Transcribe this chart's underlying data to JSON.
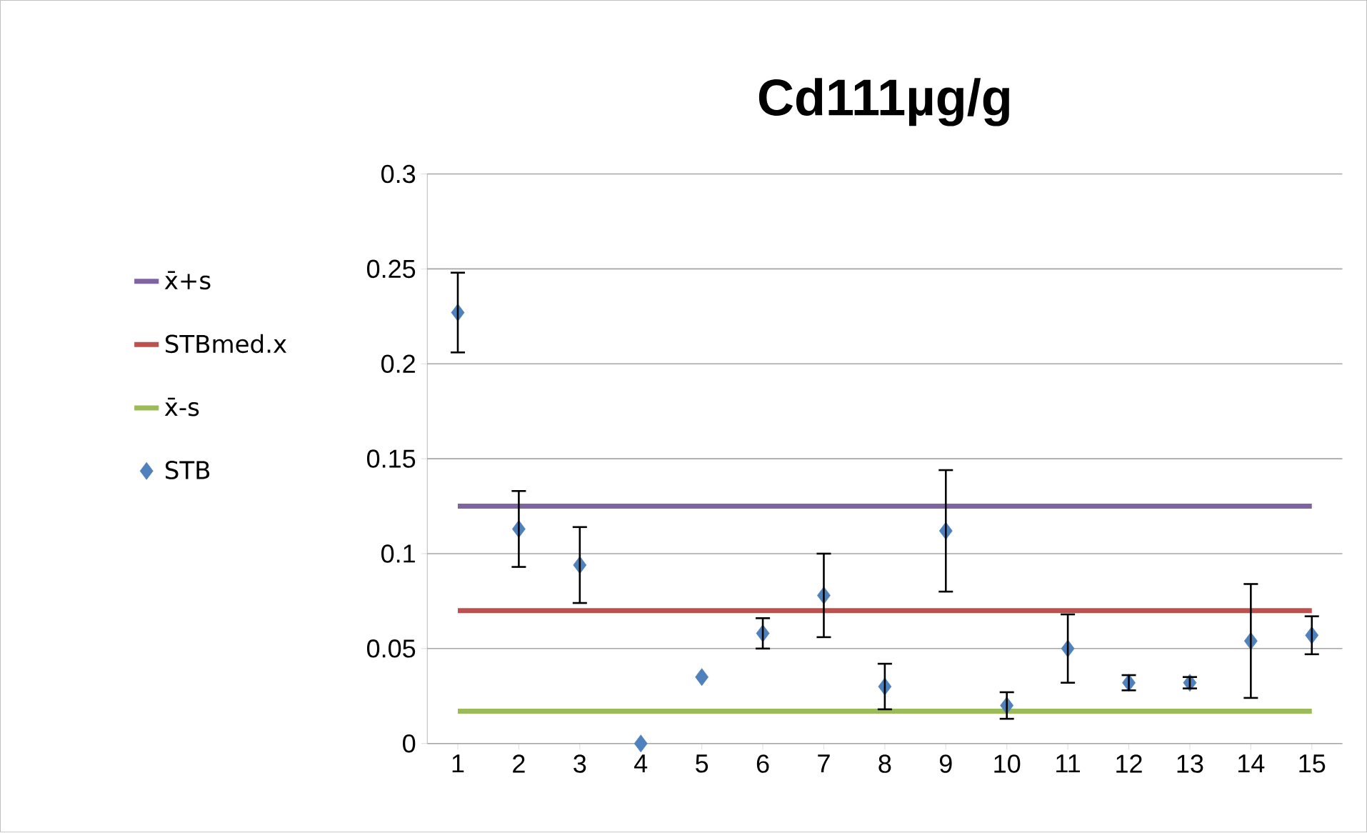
{
  "chart_data": {
    "type": "scatter",
    "title": "Cd111µg/g",
    "categories": [
      "1",
      "2",
      "3",
      "4",
      "5",
      "6",
      "7",
      "8",
      "9",
      "10",
      "11",
      "12",
      "13",
      "14",
      "15"
    ],
    "series": [
      {
        "name": "x̄+s",
        "type": "line",
        "color": "#8064a2",
        "values": [
          0.125,
          0.125,
          0.125,
          0.125,
          0.125,
          0.125,
          0.125,
          0.125,
          0.125,
          0.125,
          0.125,
          0.125,
          0.125,
          0.125,
          0.125
        ]
      },
      {
        "name": "STBmed.x",
        "type": "line",
        "color": "#c0504d",
        "values": [
          0.07,
          0.07,
          0.07,
          0.07,
          0.07,
          0.07,
          0.07,
          0.07,
          0.07,
          0.07,
          0.07,
          0.07,
          0.07,
          0.07,
          0.07
        ]
      },
      {
        "name": "x̄-s",
        "type": "line",
        "color": "#9bbb59",
        "values": [
          0.017,
          0.017,
          0.017,
          0.017,
          0.017,
          0.017,
          0.017,
          0.017,
          0.017,
          0.017,
          0.017,
          0.017,
          0.017,
          0.017,
          0.017
        ]
      },
      {
        "name": "STB",
        "color": "#4f81bd",
        "marker": "diamond",
        "values": [
          0.227,
          0.113,
          0.094,
          0,
          0.035,
          0.058,
          0.078,
          0.03,
          0.112,
          0.02,
          0.05,
          0.032,
          0.032,
          0.054,
          0.057
        ],
        "errors": [
          0.021,
          0.02,
          0.02,
          null,
          null,
          0.008,
          0.022,
          0.012,
          0.032,
          0.007,
          0.018,
          0.004,
          0.003,
          0.03,
          0.01
        ]
      }
    ],
    "ylim": [
      0,
      0.3
    ],
    "yticks": [
      0,
      0.05,
      0.1,
      0.15,
      0.2,
      0.25,
      0.3
    ],
    "grid": "y",
    "legend": "left"
  }
}
